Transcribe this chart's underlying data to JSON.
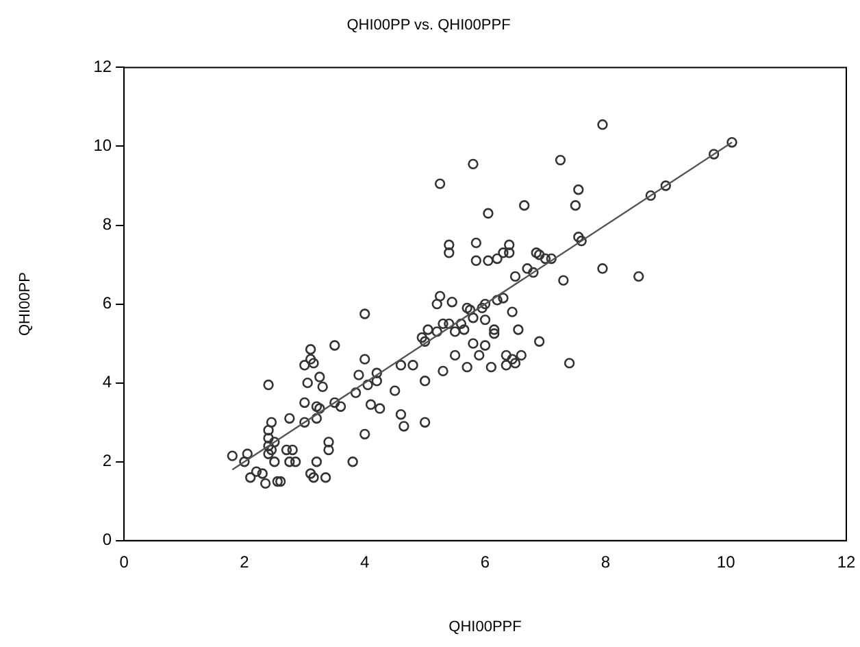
{
  "chart_data": {
    "type": "scatter",
    "title": "QHI00PP vs. QHI00PPF",
    "xlabel": "QHI00PPF",
    "ylabel": "QHI00PP",
    "xlim": [
      0,
      12
    ],
    "ylim": [
      0,
      12
    ],
    "xticks": [
      0,
      2,
      4,
      6,
      8,
      10,
      12
    ],
    "yticks": [
      0,
      2,
      4,
      6,
      8,
      10,
      12
    ],
    "grid": false,
    "legend": false,
    "series": [
      {
        "marker": "circle",
        "color": "#333333",
        "x": [
          1.8,
          2.0,
          2.05,
          2.1,
          2.2,
          2.3,
          2.35,
          2.4,
          2.4,
          2.4,
          2.4,
          2.4,
          2.45,
          2.45,
          2.5,
          2.5,
          2.55,
          2.6,
          2.7,
          2.75,
          2.75,
          2.8,
          2.85,
          3.0,
          3.0,
          3.0,
          3.05,
          3.1,
          3.1,
          3.1,
          3.15,
          3.15,
          3.2,
          3.2,
          3.25,
          3.2,
          3.25,
          3.3,
          3.35,
          3.4,
          3.4,
          3.5,
          3.5,
          3.6,
          3.8,
          3.85,
          3.9,
          4.0,
          4.0,
          4.0,
          4.05,
          4.1,
          4.2,
          4.2,
          4.25,
          4.5,
          4.6,
          4.6,
          4.65,
          4.8,
          4.95,
          5.0,
          5.0,
          5.0,
          5.05,
          5.2,
          5.2,
          5.25,
          5.25,
          5.3,
          5.3,
          5.4,
          5.4,
          5.4,
          5.45,
          5.5,
          5.5,
          5.6,
          5.65,
          5.7,
          5.7,
          5.75,
          5.8,
          5.8,
          5.8,
          5.85,
          5.85,
          5.9,
          5.95,
          6.0,
          6.0,
          6.0,
          6.05,
          6.05,
          6.1,
          6.15,
          6.15,
          6.2,
          6.2,
          6.3,
          6.3,
          6.35,
          6.35,
          6.4,
          6.4,
          6.45,
          6.45,
          6.5,
          6.5,
          6.55,
          6.6,
          6.65,
          6.7,
          6.8,
          6.85,
          6.9,
          6.9,
          7.0,
          7.1,
          7.25,
          7.3,
          7.4,
          7.5,
          7.55,
          7.55,
          7.6,
          7.95,
          7.95,
          8.55,
          8.75,
          9.0,
          9.8,
          10.1
        ],
        "values": [
          2.15,
          2.0,
          2.2,
          1.6,
          1.75,
          1.7,
          1.45,
          3.95,
          2.2,
          2.4,
          2.6,
          2.8,
          3.0,
          2.3,
          2.0,
          2.5,
          1.5,
          1.5,
          2.3,
          3.1,
          2.0,
          2.3,
          2.0,
          3.0,
          3.5,
          4.45,
          4.0,
          4.85,
          4.6,
          1.7,
          1.6,
          4.5,
          3.1,
          3.4,
          3.35,
          2.0,
          4.15,
          3.9,
          1.6,
          2.3,
          2.5,
          3.5,
          4.95,
          3.4,
          2.0,
          3.75,
          4.2,
          5.75,
          4.6,
          2.7,
          3.95,
          3.45,
          4.25,
          4.05,
          3.35,
          3.8,
          4.45,
          3.2,
          2.9,
          4.45,
          5.15,
          5.05,
          4.05,
          3.0,
          5.35,
          6.0,
          5.3,
          6.2,
          9.05,
          5.5,
          4.3,
          7.3,
          7.5,
          5.5,
          6.05,
          5.3,
          4.7,
          5.5,
          5.35,
          5.9,
          4.4,
          5.85,
          9.55,
          5.65,
          5.0,
          7.55,
          7.1,
          4.7,
          5.9,
          6.0,
          5.6,
          4.95,
          8.3,
          7.1,
          4.4,
          5.35,
          5.25,
          6.1,
          7.15,
          7.3,
          6.15,
          4.45,
          4.7,
          7.5,
          7.3,
          5.8,
          4.6,
          4.5,
          6.7,
          5.35,
          4.7,
          8.5,
          6.9,
          6.8,
          7.3,
          7.25,
          5.05,
          7.15,
          7.15,
          9.65,
          6.6,
          4.5,
          8.5,
          8.9,
          7.7,
          7.6,
          10.55,
          6.9,
          6.7,
          8.75,
          9.0,
          9.8,
          10.1
        ]
      },
      {
        "type": "line",
        "color": "#555555",
        "x": [
          1.8,
          10.1
        ],
        "values": [
          1.8,
          10.1
        ]
      }
    ]
  }
}
